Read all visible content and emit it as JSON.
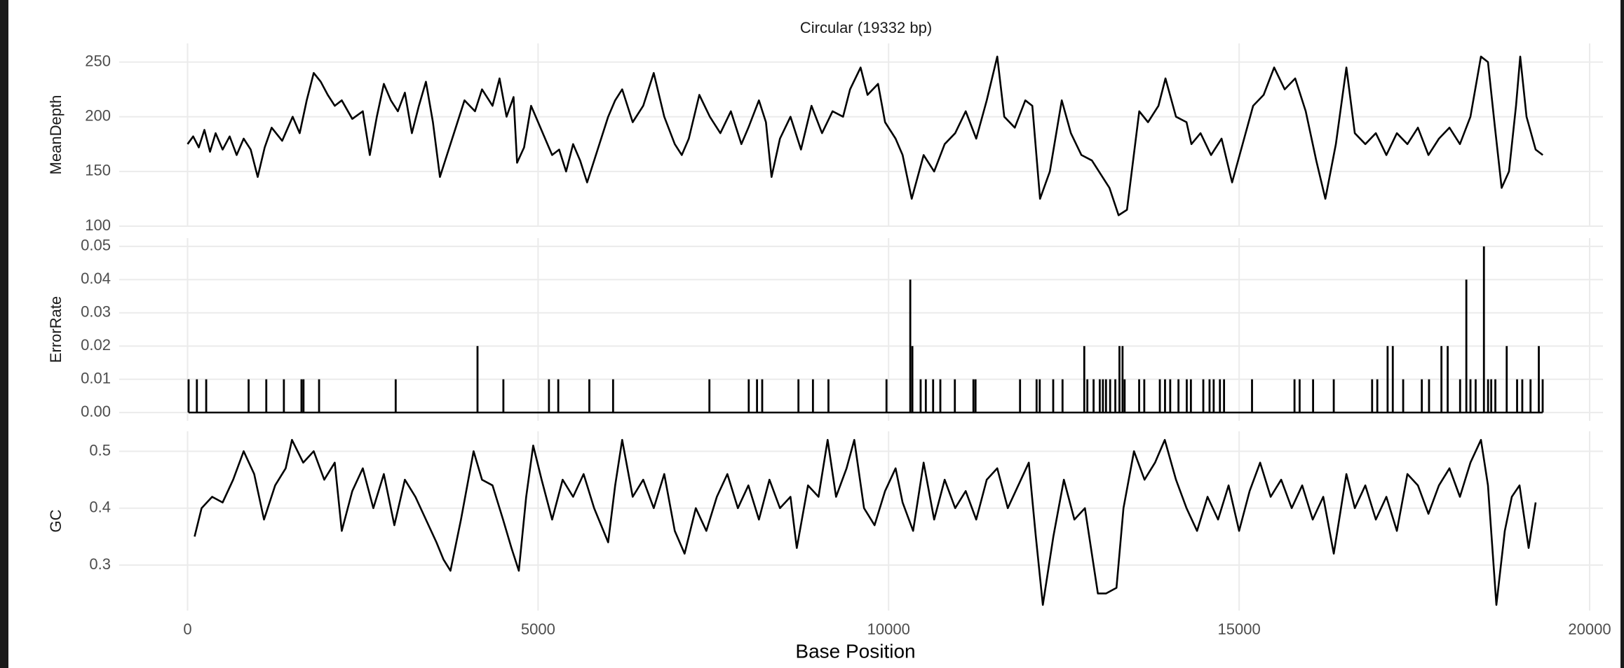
{
  "chart_data": [
    {
      "type": "line",
      "title": "Circular (19332 bp)",
      "ylabel": "MeanDepth",
      "color": "#000000",
      "grid": true,
      "xlim": [
        -975,
        20190
      ],
      "ylim": [
        100,
        267
      ],
      "yticks": [
        100,
        150,
        200,
        250
      ],
      "x": [
        0,
        80,
        160,
        240,
        320,
        400,
        500,
        600,
        700,
        800,
        900,
        1000,
        1100,
        1200,
        1350,
        1500,
        1600,
        1700,
        1800,
        1900,
        2000,
        2100,
        2200,
        2350,
        2500,
        2600,
        2700,
        2800,
        2900,
        3000,
        3100,
        3200,
        3300,
        3400,
        3500,
        3600,
        3700,
        3800,
        3950,
        4100,
        4200,
        4350,
        4450,
        4550,
        4650,
        4700,
        4800,
        4900,
        5000,
        5100,
        5200,
        5300,
        5400,
        5500,
        5600,
        5700,
        5850,
        6000,
        6100,
        6200,
        6350,
        6500,
        6650,
        6800,
        6950,
        7050,
        7150,
        7300,
        7450,
        7600,
        7750,
        7900,
        8000,
        8150,
        8250,
        8330,
        8450,
        8600,
        8750,
        8900,
        9050,
        9200,
        9350,
        9450,
        9600,
        9700,
        9850,
        9950,
        10100,
        10200,
        10330,
        10500,
        10650,
        10800,
        10950,
        11100,
        11250,
        11400,
        11550,
        11650,
        11800,
        11950,
        12050,
        12160,
        12300,
        12470,
        12600,
        12750,
        12900,
        13050,
        13150,
        13280,
        13400,
        13575,
        13700,
        13850,
        13950,
        14100,
        14250,
        14320,
        14450,
        14600,
        14750,
        14900,
        15050,
        15200,
        15350,
        15500,
        15650,
        15800,
        15950,
        16100,
        16230,
        16380,
        16530,
        16650,
        16800,
        16950,
        17100,
        17250,
        17400,
        17550,
        17700,
        17850,
        18000,
        18150,
        18300,
        18450,
        18550,
        18650,
        18745,
        18850,
        18950,
        19010,
        19100,
        19230,
        19332
      ],
      "values": [
        175,
        182,
        172,
        188,
        168,
        185,
        170,
        182,
        165,
        180,
        170,
        145,
        172,
        190,
        178,
        200,
        185,
        215,
        240,
        232,
        220,
        210,
        215,
        198,
        205,
        165,
        200,
        230,
        215,
        205,
        222,
        185,
        210,
        232,
        195,
        145,
        165,
        185,
        215,
        205,
        225,
        210,
        235,
        200,
        218,
        158,
        172,
        210,
        195,
        180,
        165,
        170,
        150,
        175,
        160,
        140,
        170,
        200,
        215,
        225,
        195,
        210,
        240,
        200,
        175,
        165,
        180,
        220,
        200,
        185,
        205,
        175,
        190,
        215,
        195,
        145,
        180,
        200,
        170,
        210,
        185,
        205,
        200,
        225,
        245,
        220,
        230,
        195,
        180,
        165,
        125,
        165,
        150,
        175,
        185,
        205,
        180,
        215,
        255,
        200,
        190,
        215,
        210,
        125,
        150,
        215,
        185,
        165,
        160,
        145,
        135,
        110,
        115,
        205,
        195,
        210,
        235,
        200,
        195,
        175,
        185,
        165,
        180,
        140,
        175,
        210,
        220,
        245,
        225,
        235,
        205,
        160,
        125,
        175,
        245,
        185,
        175,
        185,
        165,
        185,
        175,
        190,
        165,
        180,
        190,
        175,
        200,
        255,
        250,
        190,
        135,
        150,
        210,
        255,
        200,
        170,
        165
      ]
    },
    {
      "type": "bar",
      "ylabel": "ErrorRate",
      "color": "#000000",
      "grid": true,
      "xlim": [
        -975,
        20190
      ],
      "ylim": [
        -0.0025,
        0.0525
      ],
      "yticks": [
        {
          "value": 0,
          "label": "0.00"
        },
        0.01,
        0.02,
        0.03,
        0.04,
        0.05
      ],
      "x": [
        15,
        133,
        266,
        871,
        1123,
        1374,
        1625,
        1654,
        1876,
        2969,
        4136,
        4505,
        5155,
        5288,
        5731,
        6070,
        7444,
        8005,
        8123,
        8197,
        8714,
        8921,
        9142,
        9970,
        10309,
        10339,
        10457,
        10531,
        10635,
        10738,
        10945,
        11210,
        11240,
        11875,
        12111,
        12156,
        12348,
        12481,
        12791,
        12835,
        12924,
        13012,
        13057,
        13101,
        13160,
        13234,
        13293,
        13337,
        13367,
        13574,
        13647,
        13869,
        13943,
        14017,
        14135,
        14253,
        14312,
        14489,
        14578,
        14637,
        14726,
        14785,
        15184,
        15790,
        15863,
        16055,
        16350,
        16897,
        16971,
        17118,
        17192,
        17340,
        17606,
        17709,
        17886,
        17975,
        18152,
        18241,
        18300,
        18374,
        18492,
        18551,
        18596,
        18655,
        18817,
        18965,
        19039,
        19157,
        19275,
        19330
      ],
      "values": [
        0.01,
        0.01,
        0.01,
        0.01,
        0.01,
        0.01,
        0.01,
        0.01,
        0.01,
        0.01,
        0.02,
        0.01,
        0.01,
        0.01,
        0.01,
        0.01,
        0.01,
        0.01,
        0.01,
        0.01,
        0.01,
        0.01,
        0.01,
        0.01,
        0.04,
        0.02,
        0.01,
        0.01,
        0.01,
        0.01,
        0.01,
        0.01,
        0.01,
        0.01,
        0.01,
        0.01,
        0.01,
        0.01,
        0.02,
        0.01,
        0.01,
        0.01,
        0.01,
        0.01,
        0.01,
        0.01,
        0.02,
        0.02,
        0.01,
        0.01,
        0.01,
        0.01,
        0.01,
        0.01,
        0.01,
        0.01,
        0.01,
        0.01,
        0.01,
        0.01,
        0.01,
        0.01,
        0.01,
        0.01,
        0.01,
        0.01,
        0.01,
        0.01,
        0.01,
        0.02,
        0.02,
        0.01,
        0.01,
        0.01,
        0.02,
        0.02,
        0.01,
        0.04,
        0.01,
        0.01,
        0.05,
        0.01,
        0.01,
        0.01,
        0.02,
        0.01,
        0.01,
        0.01,
        0.02,
        0.01
      ]
    },
    {
      "type": "line",
      "ylabel": "GC",
      "xlabel": "Base Position",
      "color": "#000000",
      "grid": true,
      "xlim": [
        -975,
        20190
      ],
      "ylim": [
        0.22,
        0.535
      ],
      "yticks": [
        0.3,
        0.4,
        0.5
      ],
      "xticks": [
        0,
        5000,
        10000,
        15000,
        20000
      ],
      "x": [
        100,
        200,
        350,
        500,
        650,
        800,
        950,
        1090,
        1250,
        1400,
        1490,
        1650,
        1800,
        1950,
        2100,
        2200,
        2350,
        2500,
        2650,
        2800,
        2950,
        3100,
        3250,
        3400,
        3550,
        3650,
        3750,
        3900,
        4080,
        4200,
        4350,
        4500,
        4620,
        4725,
        4830,
        4930,
        5050,
        5200,
        5350,
        5500,
        5650,
        5800,
        6000,
        6100,
        6200,
        6350,
        6500,
        6650,
        6800,
        6950,
        7090,
        7250,
        7400,
        7550,
        7700,
        7850,
        8000,
        8150,
        8300,
        8450,
        8600,
        8690,
        8850,
        9000,
        9130,
        9250,
        9400,
        9510,
        9650,
        9800,
        9950,
        10100,
        10200,
        10350,
        10500,
        10650,
        10800,
        10950,
        11100,
        11250,
        11400,
        11550,
        11700,
        11850,
        12000,
        12100,
        12200,
        12350,
        12500,
        12650,
        12800,
        12985,
        13100,
        13250,
        13350,
        13500,
        13650,
        13800,
        13940,
        14100,
        14250,
        14400,
        14550,
        14700,
        14850,
        15000,
        15150,
        15300,
        15450,
        15600,
        15750,
        15900,
        16050,
        16200,
        16350,
        16530,
        16650,
        16800,
        16950,
        17100,
        17250,
        17400,
        17550,
        17700,
        17850,
        18000,
        18150,
        18300,
        18450,
        18550,
        18670,
        18790,
        18890,
        19000,
        19130,
        19230
      ],
      "values": [
        0.35,
        0.4,
        0.42,
        0.41,
        0.45,
        0.5,
        0.46,
        0.38,
        0.44,
        0.47,
        0.52,
        0.48,
        0.5,
        0.45,
        0.48,
        0.36,
        0.43,
        0.47,
        0.4,
        0.46,
        0.37,
        0.45,
        0.42,
        0.38,
        0.34,
        0.31,
        0.29,
        0.38,
        0.5,
        0.45,
        0.44,
        0.38,
        0.33,
        0.29,
        0.42,
        0.51,
        0.45,
        0.38,
        0.45,
        0.42,
        0.46,
        0.4,
        0.34,
        0.44,
        0.52,
        0.42,
        0.45,
        0.4,
        0.46,
        0.36,
        0.32,
        0.4,
        0.36,
        0.42,
        0.46,
        0.4,
        0.44,
        0.38,
        0.45,
        0.4,
        0.42,
        0.33,
        0.44,
        0.42,
        0.52,
        0.42,
        0.47,
        0.52,
        0.4,
        0.37,
        0.43,
        0.47,
        0.41,
        0.36,
        0.48,
        0.38,
        0.45,
        0.4,
        0.43,
        0.38,
        0.45,
        0.47,
        0.4,
        0.44,
        0.48,
        0.35,
        0.23,
        0.35,
        0.45,
        0.38,
        0.4,
        0.25,
        0.25,
        0.26,
        0.4,
        0.5,
        0.45,
        0.48,
        0.52,
        0.45,
        0.4,
        0.36,
        0.42,
        0.38,
        0.44,
        0.36,
        0.43,
        0.48,
        0.42,
        0.45,
        0.4,
        0.44,
        0.38,
        0.42,
        0.32,
        0.46,
        0.4,
        0.44,
        0.38,
        0.42,
        0.36,
        0.46,
        0.44,
        0.39,
        0.44,
        0.47,
        0.42,
        0.48,
        0.52,
        0.44,
        0.23,
        0.36,
        0.42,
        0.44,
        0.33,
        0.41
      ]
    }
  ]
}
